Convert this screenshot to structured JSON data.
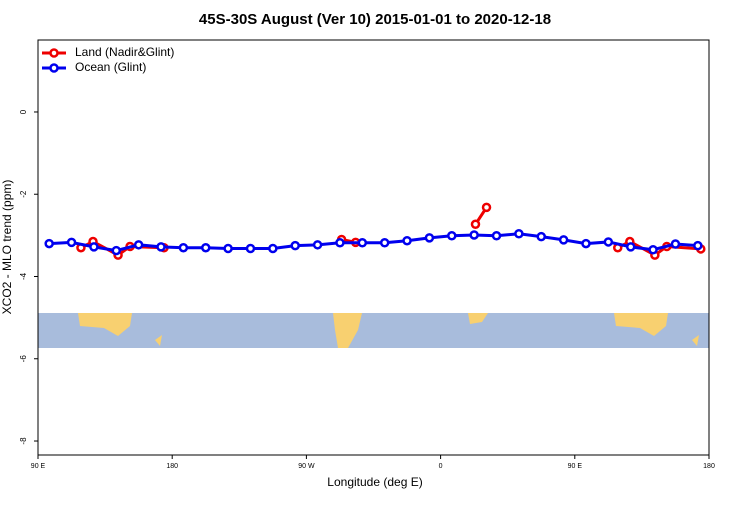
{
  "chart_data": {
    "type": "line",
    "title": "45S-30S August (Ver 10)   2015-01-01 to 2020-12-18",
    "xlabel": "Longitude (deg E)",
    "ylabel": "XCO2 - MLO trend (ppm)",
    "xlim": [
      90,
      540
    ],
    "xticks": [
      {
        "value": 90,
        "label": "90 E"
      },
      180,
      {
        "value": 270,
        "label": "90 W"
      },
      {
        "value": 360,
        "label": "0"
      },
      {
        "value": 450,
        "label": "90 E"
      },
      {
        "value": 540,
        "label": "180"
      }
    ],
    "ylim": [
      -8.34,
      1.75
    ],
    "yticks": [
      0,
      -2,
      -4,
      -6,
      -8
    ],
    "legend": "top-left",
    "series": [
      {
        "name": "Land (Nadir&Glint)",
        "color": "#ee0000",
        "x": [
          118.8,
          126.9,
          143.7,
          151.7,
          174.5,
          null,
          293.6,
          303,
          null,
          383.4,
          390.8,
          null,
          478.8,
          486.9,
          503.7,
          511.7,
          534.5
        ],
        "values": [
          -3.3,
          -3.15,
          -3.48,
          -3.27,
          -3.3,
          null,
          -3.1,
          -3.17,
          null,
          -2.73,
          -2.32,
          null,
          -3.3,
          -3.15,
          -3.48,
          -3.27,
          -3.33
        ]
      },
      {
        "name": "Ocean (Glint)",
        "color": "#0000ee",
        "x": [
          97.5,
          112.5,
          127.5,
          142.5,
          157.5,
          172.5,
          187.5,
          202.5,
          217.5,
          232.5,
          247.5,
          262.5,
          277.5,
          292.5,
          307.5,
          322.5,
          337.5,
          352.5,
          367.5,
          382.5,
          397.5,
          412.5,
          427.5,
          442.5,
          457.5,
          472.5,
          487.5,
          502.5,
          517.5,
          532.5
        ],
        "values": [
          -3.2,
          -3.17,
          -3.28,
          -3.37,
          -3.23,
          -3.28,
          -3.3,
          -3.3,
          -3.32,
          -3.32,
          -3.32,
          -3.25,
          -3.23,
          -3.18,
          -3.18,
          -3.18,
          -3.13,
          -3.06,
          -3.01,
          -2.99,
          -3.01,
          -2.96,
          -3.03,
          -3.11,
          -3.2,
          -3.16,
          -3.28,
          -3.35,
          -3.21,
          -3.25
        ]
      }
    ]
  }
}
